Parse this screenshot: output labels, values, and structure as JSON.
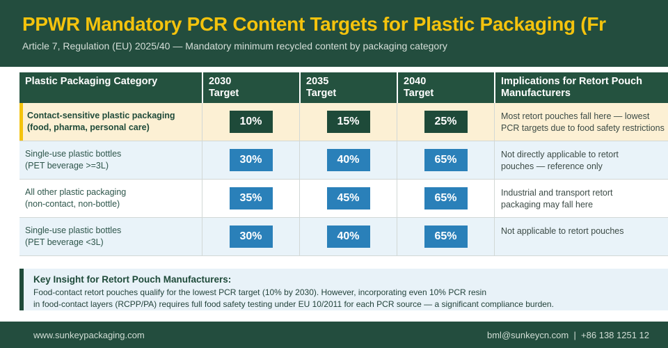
{
  "theme": {
    "brand_green": "#234D3E",
    "table_header_green": "#24523F",
    "gold": "#F4C30D",
    "cream": "#FCF0D4",
    "light_blue": "#E9F3F9",
    "badge_blue": "#2A80B9",
    "badge_green": "#1E4A39",
    "insight_bg": "#E8F2F8",
    "row_border": "#D2D8D6",
    "cat_text": "#2E564B",
    "impl_text": "#3C4B46",
    "subtitle_color": "#D6DFD9",
    "footer_text": "#D2DED6"
  },
  "header": {
    "title": "PPWR Mandatory PCR Content Targets for Plastic Packaging (Fr",
    "subtitle": "Article 7, Regulation (EU) 2025/40 — Mandatory minimum recycled content by packaging category"
  },
  "table": {
    "columns": [
      {
        "label": "Plastic Packaging Category"
      },
      {
        "label": "2030\nTarget"
      },
      {
        "label": "2035\nTarget"
      },
      {
        "label": "2040\nTarget"
      },
      {
        "label": "Implications for Retort Pouch\nManufacturers"
      }
    ],
    "rows": [
      {
        "category": "Contact-sensitive plastic packaging\n(food, pharma, personal care)",
        "targets": [
          "10%",
          "15%",
          "25%"
        ],
        "implication": "Most retort pouches fall here — lowest\nPCR targets due to food safety restrictions",
        "highlight": true
      },
      {
        "category": "Single-use plastic bottles\n(PET beverage >=3L)",
        "targets": [
          "30%",
          "40%",
          "65%"
        ],
        "implication": "Not directly applicable to retort\npouches — reference only",
        "highlight": false
      },
      {
        "category": "All other plastic packaging\n(non-contact, non-bottle)",
        "targets": [
          "35%",
          "45%",
          "65%"
        ],
        "implication": "Industrial and transport retort\npackaging may fall here",
        "highlight": false
      },
      {
        "category": "Single-use plastic bottles\n(PET beverage <3L)",
        "targets": [
          "30%",
          "40%",
          "65%"
        ],
        "implication": "Not applicable to retort pouches",
        "highlight": false
      }
    ]
  },
  "insight": {
    "title": "Key Insight for Retort Pouch Manufacturers:",
    "body": "Food-contact retort pouches qualify for the lowest PCR target (10% by 2030). However, incorporating even 10% PCR resin\nin food-contact layers (RCPP/PA) requires full food safety testing under EU 10/2011 for each PCR source — a significant compliance burden."
  },
  "footer": {
    "website": "www.sunkeypackaging.com",
    "contact": "bml@sunkeycn.com  |  +86 138 1251 12"
  }
}
